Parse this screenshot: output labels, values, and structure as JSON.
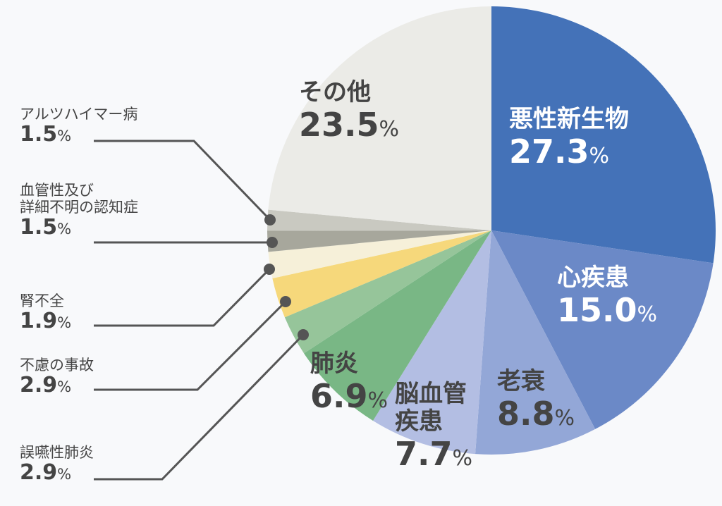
{
  "chart_data": {
    "type": "pie",
    "start": "12 o'clock, clockwise",
    "unit": "%",
    "slices": [
      {
        "label": "悪性新生物",
        "value": 27.3,
        "color": "#4472b8"
      },
      {
        "label": "心疾患",
        "value": 15.0,
        "color": "#6b89c7"
      },
      {
        "label": "老衰",
        "value": 8.8,
        "color": "#93a7d7"
      },
      {
        "label": "脳血管疾患",
        "value": 7.7,
        "color": "#b3bee3"
      },
      {
        "label": "肺炎",
        "value": 6.9,
        "color": "#79b785"
      },
      {
        "label": "誤嚥性肺炎",
        "value": 2.9,
        "color": "#96c59a"
      },
      {
        "label": "不慮の事故",
        "value": 2.9,
        "color": "#f6d87b"
      },
      {
        "label": "腎不全",
        "value": 1.9,
        "color": "#f6f0d9"
      },
      {
        "label": "血管性及び詳細不明の認知症",
        "value": 1.5,
        "color": "#a7a79c"
      },
      {
        "label": "アルツハイマー病",
        "value": 1.5,
        "color": "#c9c9c1"
      },
      {
        "label": "その他",
        "value": 23.5,
        "color": "#ebebe7"
      }
    ],
    "labels": {
      "s0": {
        "name": "悪性新生物",
        "pct": "27.3"
      },
      "s1": {
        "name": "心疾患",
        "pct": "15.0"
      },
      "s2": {
        "name": "老衰",
        "pct": "8.8"
      },
      "s3": {
        "name1": "脳血管",
        "name2": "疾患",
        "pct": "7.7"
      },
      "s4": {
        "name": "肺炎",
        "pct": "6.9"
      },
      "s5": {
        "name": "誤嚥性肺炎",
        "pct": "2.9"
      },
      "s6": {
        "name": "不慮の事故",
        "pct": "2.9"
      },
      "s7": {
        "name": "腎不全",
        "pct": "1.9"
      },
      "s8": {
        "name1": "血管性及び",
        "name2": "詳細不明の認知症",
        "pct": "1.5"
      },
      "s9": {
        "name": "アルツハイマー病",
        "pct": "1.5"
      },
      "s10": {
        "name": "その他",
        "pct": "23.5"
      }
    },
    "pct_sign": "%"
  }
}
